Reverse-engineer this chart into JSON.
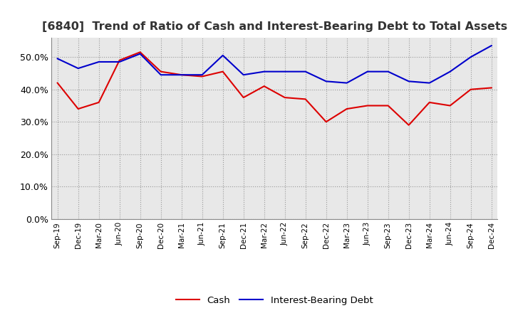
{
  "title": "[6840]  Trend of Ratio of Cash and Interest-Bearing Debt to Total Assets",
  "labels": [
    "Sep-19",
    "Dec-19",
    "Mar-20",
    "Jun-20",
    "Sep-20",
    "Dec-20",
    "Mar-21",
    "Jun-21",
    "Sep-21",
    "Dec-21",
    "Mar-22",
    "Jun-22",
    "Sep-22",
    "Dec-22",
    "Mar-23",
    "Jun-23",
    "Sep-23",
    "Dec-23",
    "Mar-24",
    "Jun-24",
    "Sep-24",
    "Dec-24"
  ],
  "cash": [
    42.0,
    34.0,
    36.0,
    49.0,
    51.5,
    45.5,
    44.5,
    44.0,
    45.5,
    37.5,
    41.0,
    37.5,
    37.0,
    30.0,
    34.0,
    35.0,
    35.0,
    29.0,
    36.0,
    35.0,
    40.0,
    40.5
  ],
  "interest_bearing_debt": [
    49.5,
    46.5,
    48.5,
    48.5,
    51.0,
    44.5,
    44.5,
    44.5,
    50.5,
    44.5,
    45.5,
    45.5,
    45.5,
    42.5,
    42.0,
    45.5,
    45.5,
    42.5,
    42.0,
    45.5,
    50.0,
    53.5
  ],
  "cash_color": "#dd0000",
  "ibd_color": "#0000cc",
  "ylim": [
    0,
    56
  ],
  "yticks": [
    0,
    10,
    20,
    30,
    40,
    50
  ],
  "background_color": "#ffffff",
  "plot_bg_color": "#e8e8e8",
  "grid_color": "#999999",
  "title_fontsize": 11.5,
  "legend_cash": "Cash",
  "legend_ibd": "Interest-Bearing Debt"
}
